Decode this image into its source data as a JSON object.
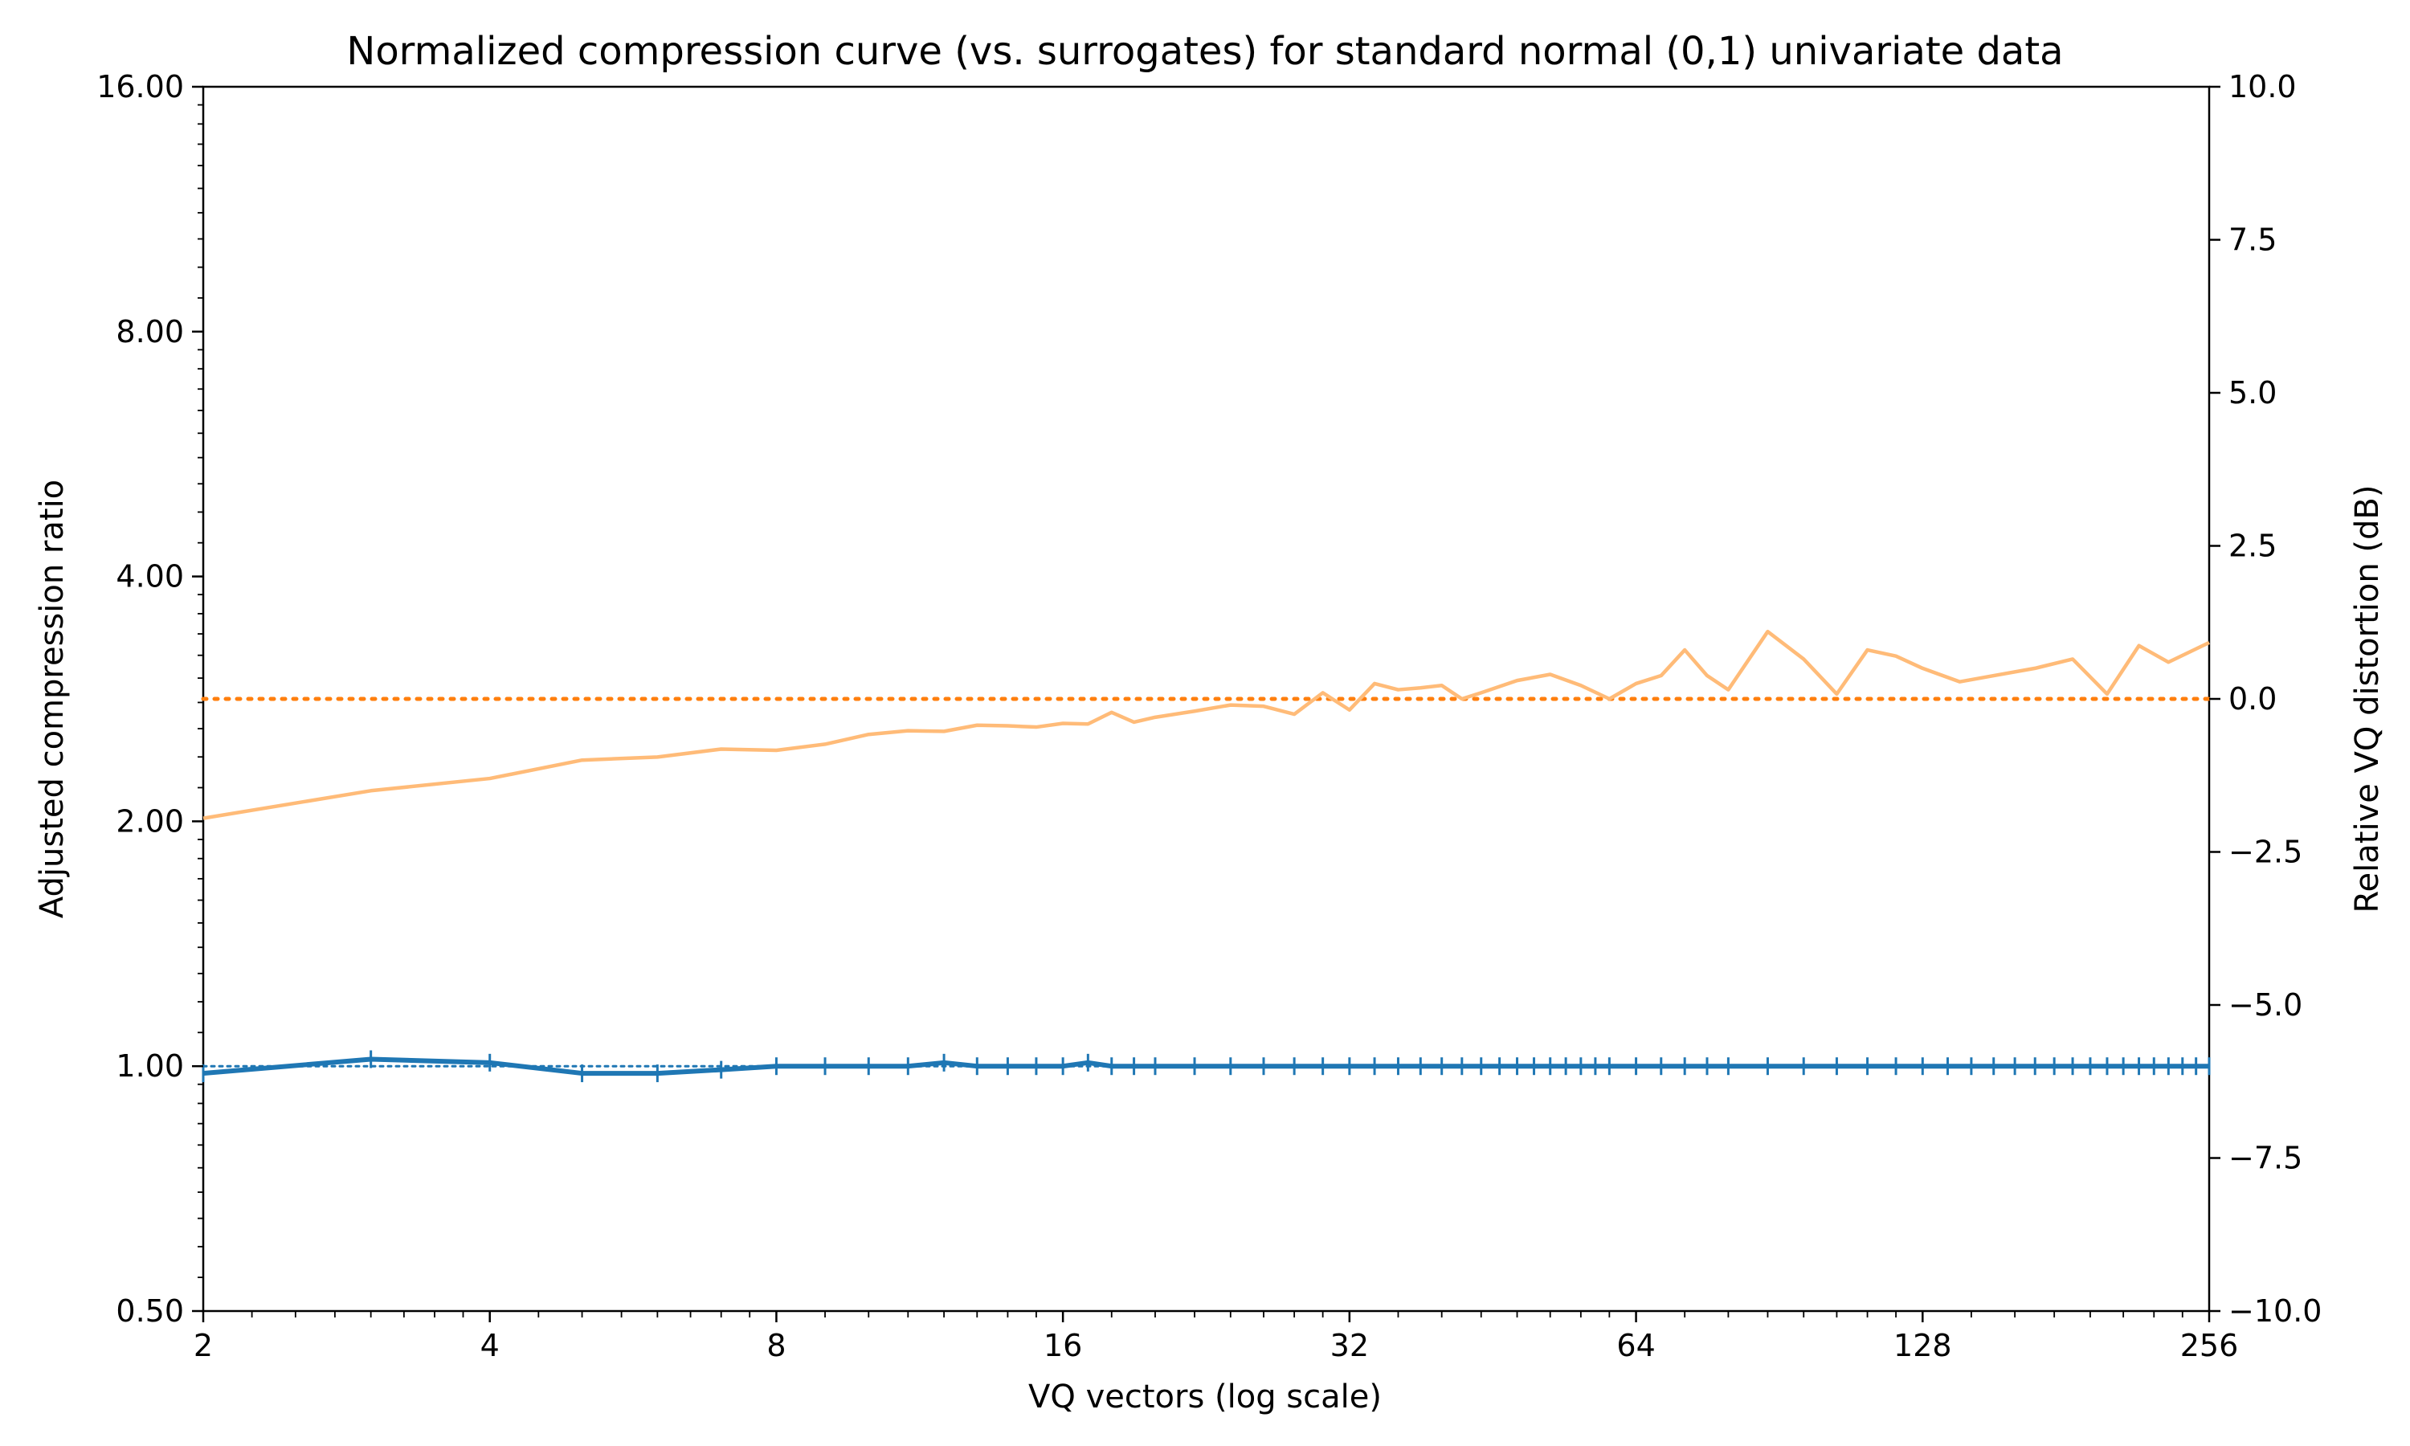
{
  "chart_data": {
    "type": "line",
    "title": "Normalized compression curve (vs. surrogates) for standard normal (0,1) univariate data",
    "xlabel": "VQ vectors (log scale)",
    "ylabel": "Adjusted compression ratio",
    "y2label": "Relative VQ distortion (dB)",
    "x_scale": "log2",
    "y_scale": "log2",
    "xlim": [
      2,
      256
    ],
    "ylim": [
      0.5,
      16
    ],
    "y2lim": [
      -10,
      10
    ],
    "x_ticks": [
      2,
      4,
      8,
      16,
      32,
      64,
      128,
      256
    ],
    "y_ticks": [
      0.5,
      1,
      2,
      4,
      8,
      16
    ],
    "y_tick_labels": [
      "0.50",
      "1.00",
      "2.00",
      "4.00",
      "8.00",
      "16.00"
    ],
    "y2_ticks": [
      -10,
      -7.5,
      -5,
      -2.5,
      0,
      2.5,
      5,
      7.5,
      10
    ],
    "y2_tick_labels": [
      "−10.0",
      "−7.5",
      "−5.0",
      "−2.5",
      "0.0",
      "2.5",
      "5.0",
      "7.5",
      "10.0"
    ],
    "grid": false,
    "legend": "none",
    "reference_lines": [
      {
        "axis": "left",
        "y": 1.0,
        "style": "dotted",
        "color": "#1f77b4"
      },
      {
        "axis": "right",
        "y": 0.0,
        "style": "dotted",
        "color": "#ff7f0e"
      }
    ],
    "series": [
      {
        "axis": "left",
        "color": "#1f77b4",
        "marker": "errorbar",
        "x": [
          2,
          3,
          4,
          5,
          6,
          7,
          8,
          9,
          10,
          11,
          12,
          13,
          14,
          15,
          16,
          17,
          18,
          19,
          20,
          22,
          24,
          26,
          28,
          30,
          32,
          34,
          36,
          38,
          40,
          42,
          44,
          46,
          48,
          50,
          52,
          54,
          56,
          58,
          60,
          64,
          68,
          72,
          76,
          80,
          88,
          96,
          104,
          112,
          120,
          128,
          136,
          144,
          152,
          160,
          168,
          176,
          184,
          192,
          200,
          208,
          216,
          224,
          232,
          240,
          248,
          256
        ],
        "y": [
          0.98,
          1.02,
          1.01,
          0.98,
          0.98,
          0.99,
          1.0,
          1.0,
          1.0,
          1.0,
          1.01,
          1.0,
          1.0,
          1.0,
          1.0,
          1.01,
          1.0,
          1.0,
          1.0,
          1.0,
          1.0,
          1.0,
          1.0,
          1.0,
          1.0,
          1.0,
          1.0,
          1.0,
          1.0,
          1.0,
          1.0,
          1.0,
          1.0,
          1.0,
          1.0,
          1.0,
          1.0,
          1.0,
          1.0,
          1.0,
          1.0,
          1.0,
          1.0,
          1.0,
          1.0,
          1.0,
          1.0,
          1.0,
          1.0,
          1.0,
          1.0,
          1.0,
          1.0,
          1.0,
          1.0,
          1.0,
          1.0,
          1.0,
          1.0,
          1.0,
          1.0,
          1.0,
          1.0,
          1.0,
          1.0,
          1.0
        ]
      },
      {
        "axis": "right",
        "color": "#ffbb78",
        "marker": "none",
        "x": [
          2,
          3,
          4,
          5,
          6,
          7,
          8,
          9,
          10,
          11,
          12,
          13,
          14,
          15,
          16,
          17,
          18,
          19,
          20,
          22,
          24,
          26,
          28,
          30,
          32,
          34,
          36,
          38,
          40,
          42,
          44,
          48,
          52,
          56,
          60,
          64,
          68,
          72,
          76,
          80,
          88,
          96,
          104,
          112,
          120,
          128,
          140,
          152,
          168,
          184,
          200,
          216,
          232,
          256
        ],
        "y": [
          -1.95,
          -1.5,
          -1.3,
          -1.0,
          -0.95,
          -0.82,
          -0.84,
          -0.74,
          -0.58,
          -0.52,
          -0.53,
          -0.43,
          -0.44,
          -0.46,
          -0.4,
          -0.41,
          -0.22,
          -0.38,
          -0.3,
          -0.2,
          -0.1,
          -0.12,
          -0.25,
          0.1,
          -0.18,
          0.25,
          0.15,
          0.18,
          0.22,
          0.0,
          0.1,
          0.3,
          0.4,
          0.22,
          0.0,
          0.25,
          0.38,
          0.8,
          0.38,
          0.15,
          1.1,
          0.65,
          0.08,
          0.8,
          0.7,
          0.5,
          0.28,
          0.38,
          0.5,
          0.65,
          0.08,
          0.87,
          0.6,
          0.92
        ]
      }
    ]
  }
}
